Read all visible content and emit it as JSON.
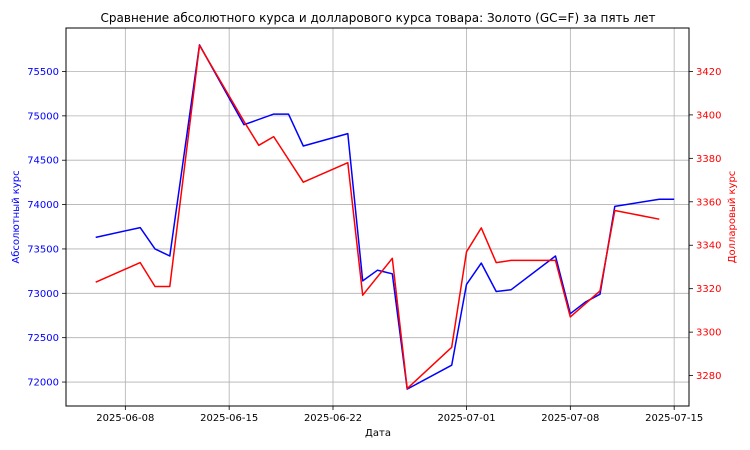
{
  "chart_data": {
    "type": "line",
    "title": "Сравнение абсолютного курса и долларового курса товара: Золото (GC=F) за пять лет",
    "xlabel": "Дата",
    "ylabel_left": "Абсолютный курс",
    "ylabel_right": "Долларовый курс",
    "grid": true,
    "x_ticks": [
      "2025-06-08",
      "2025-06-15",
      "2025-06-22",
      "2025-07-01",
      "2025-07-08",
      "2025-07-15"
    ],
    "xlim": [
      "2025-06-04",
      "2025-07-16"
    ],
    "left_axis": {
      "ylim": [
        71730,
        75990
      ],
      "ticks": [
        72000,
        72500,
        73000,
        73500,
        74000,
        74500,
        75000,
        75500
      ],
      "color": "#0000ff"
    },
    "right_axis": {
      "ylim": [
        3266,
        3440
      ],
      "ticks": [
        3280,
        3300,
        3320,
        3340,
        3360,
        3380,
        3400,
        3420
      ],
      "color": "#ff0000"
    },
    "series": [
      {
        "axis": "left",
        "color": "#0000ff",
        "points": [
          {
            "x": "2025-06-06",
            "y": 73630
          },
          {
            "x": "2025-06-09",
            "y": 73740
          },
          {
            "x": "2025-06-10",
            "y": 73500
          },
          {
            "x": "2025-06-11",
            "y": 73420
          },
          {
            "x": "2025-06-13",
            "y": 75800
          },
          {
            "x": "2025-06-16",
            "y": 74900
          },
          {
            "x": "2025-06-18",
            "y": 75020
          },
          {
            "x": "2025-06-19",
            "y": 75020
          },
          {
            "x": "2025-06-20",
            "y": 74660
          },
          {
            "x": "2025-06-23",
            "y": 74800
          },
          {
            "x": "2025-06-24",
            "y": 73140
          },
          {
            "x": "2025-06-25",
            "y": 73260
          },
          {
            "x": "2025-06-26",
            "y": 73220
          },
          {
            "x": "2025-06-27",
            "y": 71920
          },
          {
            "x": "2025-06-30",
            "y": 72190
          },
          {
            "x": "2025-07-01",
            "y": 73100
          },
          {
            "x": "2025-07-02",
            "y": 73340
          },
          {
            "x": "2025-07-03",
            "y": 73020
          },
          {
            "x": "2025-07-04",
            "y": 73040
          },
          {
            "x": "2025-07-07",
            "y": 73420
          },
          {
            "x": "2025-07-08",
            "y": 72770
          },
          {
            "x": "2025-07-09",
            "y": 72900
          },
          {
            "x": "2025-07-10",
            "y": 72990
          },
          {
            "x": "2025-07-11",
            "y": 73980
          },
          {
            "x": "2025-07-14",
            "y": 74060
          },
          {
            "x": "2025-07-15",
            "y": 74060
          }
        ]
      },
      {
        "axis": "right",
        "color": "#ff0000",
        "points": [
          {
            "x": "2025-06-06",
            "y": 3323
          },
          {
            "x": "2025-06-09",
            "y": 3332
          },
          {
            "x": "2025-06-10",
            "y": 3321
          },
          {
            "x": "2025-06-11",
            "y": 3321
          },
          {
            "x": "2025-06-13",
            "y": 3432
          },
          {
            "x": "2025-06-16",
            "y": 3397
          },
          {
            "x": "2025-06-17",
            "y": 3386
          },
          {
            "x": "2025-06-18",
            "y": 3390
          },
          {
            "x": "2025-06-20",
            "y": 3369
          },
          {
            "x": "2025-06-23",
            "y": 3378
          },
          {
            "x": "2025-06-24",
            "y": 3317
          },
          {
            "x": "2025-06-26",
            "y": 3334
          },
          {
            "x": "2025-06-27",
            "y": 3274
          },
          {
            "x": "2025-06-30",
            "y": 3293
          },
          {
            "x": "2025-07-01",
            "y": 3337
          },
          {
            "x": "2025-07-02",
            "y": 3348
          },
          {
            "x": "2025-07-03",
            "y": 3332
          },
          {
            "x": "2025-07-04",
            "y": 3333
          },
          {
            "x": "2025-07-07",
            "y": 3333
          },
          {
            "x": "2025-07-08",
            "y": 3307
          },
          {
            "x": "2025-07-10",
            "y": 3319
          },
          {
            "x": "2025-07-11",
            "y": 3356
          },
          {
            "x": "2025-07-14",
            "y": 3352
          }
        ]
      }
    ]
  }
}
